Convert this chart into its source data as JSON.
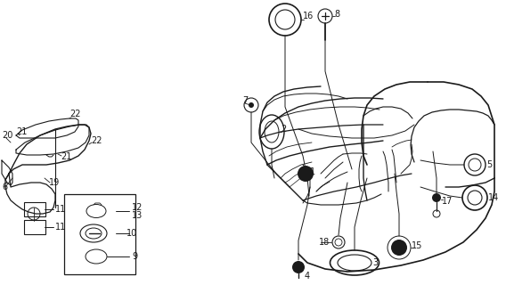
{
  "bg_color": "#ffffff",
  "line_color": "#1a1a1a",
  "figsize": [
    5.68,
    3.2
  ],
  "dpi": 100
}
